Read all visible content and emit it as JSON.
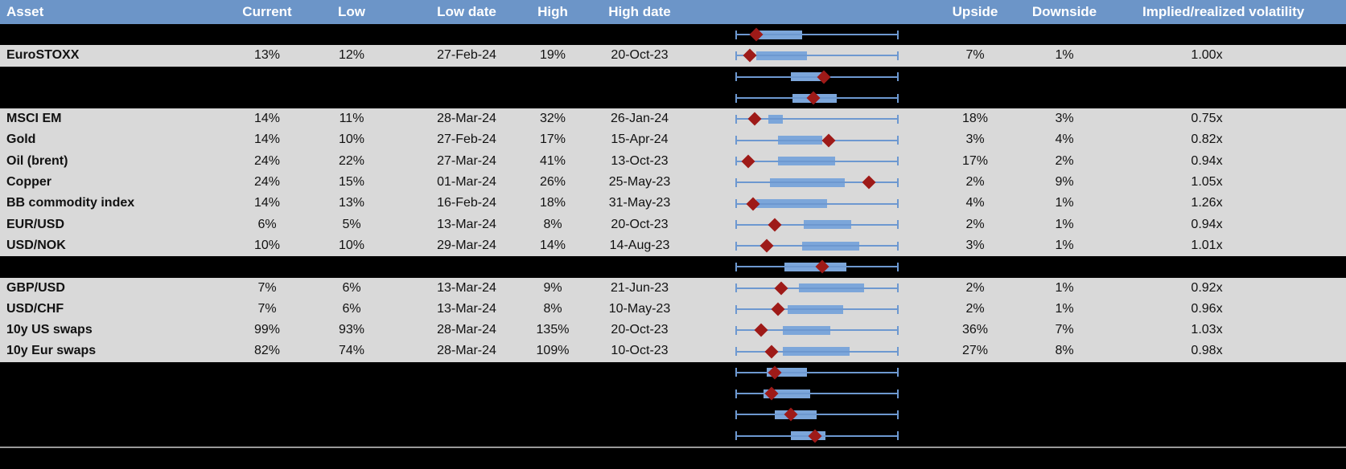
{
  "header": {
    "asset": "Asset",
    "current": "Current",
    "low": "Low",
    "low_date": "Low date",
    "high": "High",
    "high_date": "High date",
    "upside": "Upside",
    "downside": "Downside",
    "implied_realized": "Implied/realized volatility"
  },
  "colors": {
    "header_bg": "#6c95c8",
    "header_text": "#ffffff",
    "row_light": "#d9d9d9",
    "row_dark": "#000000",
    "body_text": "#111111",
    "whisker": "#6d98d0",
    "box_fill": "#7ca6da",
    "marker": "#9e1a18",
    "separator": "#999999"
  },
  "chart_data": {
    "type": "table",
    "columns": [
      "Asset",
      "Current",
      "Low",
      "Low date",
      "High",
      "High date",
      "volatility range box plot",
      "Upside",
      "Downside",
      "Implied/realized volatility"
    ],
    "box_plot_geometry": "box_pct and marker_pct are percents of the min-to-max whisker span; whiskers span the full cell for every row; marker is the dark-red diamond (current level)",
    "rows": [
      {
        "style": "dark",
        "asset": "",
        "current": "",
        "low": "",
        "low_date": "",
        "high": "",
        "high_date": "",
        "upside": "",
        "downside": "",
        "implied_realized": "",
        "box_pct": [
          14,
          41
        ],
        "marker_pct": 13
      },
      {
        "style": "light",
        "asset": "EuroSTOXX",
        "current": "13%",
        "low": "12%",
        "low_date": "27-Feb-24",
        "high": "19%",
        "high_date": "20-Oct-23",
        "upside": "7%",
        "downside": "1%",
        "implied_realized": "1.00x",
        "box_pct": [
          13,
          44
        ],
        "marker_pct": 9
      },
      {
        "style": "dark",
        "asset": "",
        "current": "",
        "low": "",
        "low_date": "",
        "high": "",
        "high_date": "",
        "upside": "",
        "downside": "",
        "implied_realized": "",
        "box_pct": [
          34,
          55
        ],
        "marker_pct": 54
      },
      {
        "style": "dark",
        "asset": "",
        "current": "",
        "low": "",
        "low_date": "",
        "high": "",
        "high_date": "",
        "upside": "",
        "downside": "",
        "implied_realized": "",
        "box_pct": [
          35,
          62
        ],
        "marker_pct": 48
      },
      {
        "style": "light",
        "asset": "MSCI EM",
        "current": "14%",
        "low": "11%",
        "low_date": "28-Mar-24",
        "high": "32%",
        "high_date": "26-Jan-24",
        "upside": "18%",
        "downside": "3%",
        "implied_realized": "0.75x",
        "box_pct": [
          20,
          29
        ],
        "marker_pct": 12
      },
      {
        "style": "light",
        "asset": "Gold",
        "current": "14%",
        "low": "10%",
        "low_date": "27-Feb-24",
        "high": "17%",
        "high_date": "15-Apr-24",
        "upside": "3%",
        "downside": "4%",
        "implied_realized": "0.82x",
        "box_pct": [
          26,
          53
        ],
        "marker_pct": 57
      },
      {
        "style": "light",
        "asset": "Oil (brent)",
        "current": "24%",
        "low": "22%",
        "low_date": "27-Mar-24",
        "high": "41%",
        "high_date": "13-Oct-23",
        "upside": "17%",
        "downside": "2%",
        "implied_realized": "0.94x",
        "box_pct": [
          26,
          61
        ],
        "marker_pct": 8
      },
      {
        "style": "light",
        "asset": "Copper",
        "current": "24%",
        "low": "15%",
        "low_date": "01-Mar-24",
        "high": "26%",
        "high_date": "25-May-23",
        "upside": "2%",
        "downside": "9%",
        "implied_realized": "1.05x",
        "box_pct": [
          21,
          67
        ],
        "marker_pct": 82
      },
      {
        "style": "light",
        "asset": "BB commodity index",
        "current": "14%",
        "low": "13%",
        "low_date": "16-Feb-24",
        "high": "18%",
        "high_date": "31-May-23",
        "upside": "4%",
        "downside": "1%",
        "implied_realized": "1.26x",
        "box_pct": [
          13,
          56
        ],
        "marker_pct": 11
      },
      {
        "style": "light",
        "asset": "EUR/USD",
        "current": "6%",
        "low": "5%",
        "low_date": "13-Mar-24",
        "high": "8%",
        "high_date": "20-Oct-23",
        "upside": "2%",
        "downside": "1%",
        "implied_realized": "0.94x",
        "box_pct": [
          42,
          71
        ],
        "marker_pct": 24
      },
      {
        "style": "light",
        "asset": "USD/NOK",
        "current": "10%",
        "low": "10%",
        "low_date": "29-Mar-24",
        "high": "14%",
        "high_date": "14-Aug-23",
        "upside": "3%",
        "downside": "1%",
        "implied_realized": "1.01x",
        "box_pct": [
          41,
          76
        ],
        "marker_pct": 19
      },
      {
        "style": "dark",
        "asset": "",
        "current": "",
        "low": "",
        "low_date": "",
        "high": "",
        "high_date": "",
        "upside": "",
        "downside": "",
        "implied_realized": "",
        "box_pct": [
          30,
          68
        ],
        "marker_pct": 53
      },
      {
        "style": "light",
        "asset": "GBP/USD",
        "current": "7%",
        "low": "6%",
        "low_date": "13-Mar-24",
        "high": "9%",
        "high_date": "21-Jun-23",
        "upside": "2%",
        "downside": "1%",
        "implied_realized": "0.92x",
        "box_pct": [
          39,
          79
        ],
        "marker_pct": 28
      },
      {
        "style": "light",
        "asset": "USD/CHF",
        "current": "7%",
        "low": "6%",
        "low_date": "13-Mar-24",
        "high": "8%",
        "high_date": "10-May-23",
        "upside": "2%",
        "downside": "1%",
        "implied_realized": "0.96x",
        "box_pct": [
          32,
          66
        ],
        "marker_pct": 26
      },
      {
        "style": "light",
        "asset": "10y US swaps",
        "current": "99%",
        "low": "93%",
        "low_date": "28-Mar-24",
        "high": "135%",
        "high_date": "20-Oct-23",
        "upside": "36%",
        "downside": "7%",
        "implied_realized": "1.03x",
        "box_pct": [
          29,
          58
        ],
        "marker_pct": 16
      },
      {
        "style": "light",
        "asset": "10y Eur swaps",
        "current": "82%",
        "low": "74%",
        "low_date": "28-Mar-24",
        "high": "109%",
        "high_date": "10-Oct-23",
        "upside": "27%",
        "downside": "8%",
        "implied_realized": "0.98x",
        "box_pct": [
          29,
          70
        ],
        "marker_pct": 22
      },
      {
        "style": "dark",
        "asset": "",
        "current": "",
        "low": "",
        "low_date": "",
        "high": "",
        "high_date": "",
        "upside": "",
        "downside": "",
        "implied_realized": "",
        "box_pct": [
          19,
          44
        ],
        "marker_pct": 24
      },
      {
        "style": "dark",
        "asset": "",
        "current": "",
        "low": "",
        "low_date": "",
        "high": "",
        "high_date": "",
        "upside": "",
        "downside": "",
        "implied_realized": "",
        "box_pct": [
          17,
          46
        ],
        "marker_pct": 22
      },
      {
        "style": "dark",
        "asset": "",
        "current": "",
        "low": "",
        "low_date": "",
        "high": "",
        "high_date": "",
        "upside": "",
        "downside": "",
        "implied_realized": "",
        "box_pct": [
          24,
          50
        ],
        "marker_pct": 34
      },
      {
        "style": "dark",
        "asset": "",
        "current": "",
        "low": "",
        "low_date": "",
        "high": "",
        "high_date": "",
        "upside": "",
        "downside": "",
        "implied_realized": "",
        "box_pct": [
          34,
          55
        ],
        "marker_pct": 49
      }
    ]
  }
}
